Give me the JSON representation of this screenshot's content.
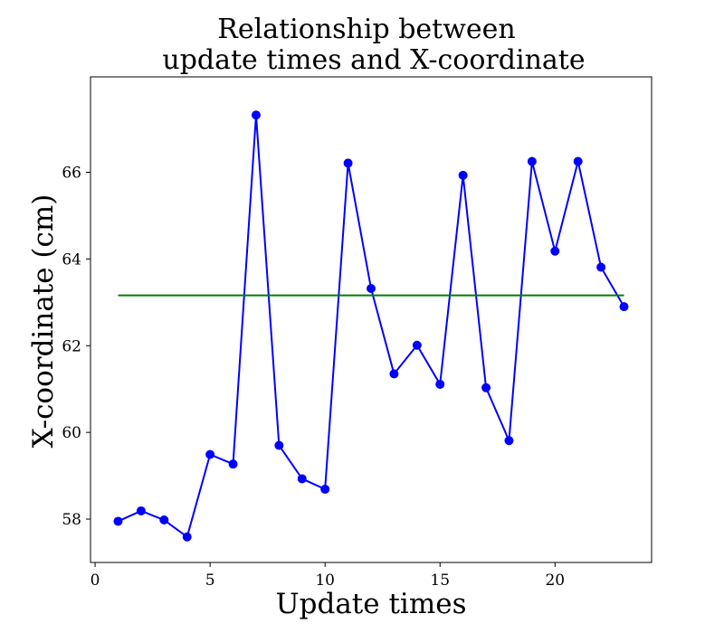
{
  "chart_data": {
    "type": "line",
    "title_lines": [
      "Relationship between",
      "update times and X-coordinate"
    ],
    "xlabel": "Update times",
    "ylabel": "X-coordinate (cm)",
    "xlim": [
      -0.2,
      24.2
    ],
    "ylim": [
      57.0,
      68.2
    ],
    "xticks": [
      0,
      5,
      10,
      15,
      20
    ],
    "yticks": [
      58,
      60,
      62,
      64,
      66
    ],
    "grid": false,
    "legend": "none",
    "series": [
      {
        "color": "#0000ff",
        "marker": "circle",
        "x": [
          1,
          2,
          3,
          4,
          5,
          6,
          7,
          8,
          9,
          10,
          11,
          12,
          13,
          14,
          15,
          16,
          17,
          18,
          19,
          20,
          21,
          22,
          23
        ],
        "y": [
          57.95,
          58.19,
          57.98,
          57.59,
          59.49,
          59.27,
          67.32,
          59.7,
          58.93,
          58.69,
          66.21,
          63.32,
          61.35,
          62.01,
          61.11,
          65.93,
          61.03,
          59.81,
          66.25,
          64.18,
          66.25,
          63.81,
          62.9
        ]
      },
      {
        "color": "#008000",
        "marker": "none",
        "x": [
          1,
          23
        ],
        "y": [
          63.16,
          63.16
        ]
      }
    ]
  }
}
